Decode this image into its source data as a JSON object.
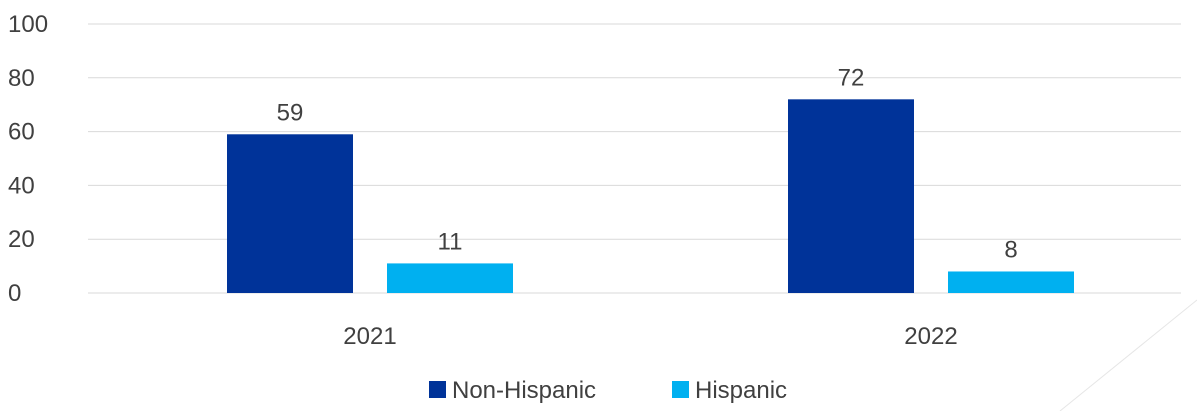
{
  "chart_data": {
    "type": "bar",
    "categories": [
      "2021",
      "2022"
    ],
    "series": [
      {
        "name": "Non-Hispanic",
        "color": "#003399",
        "values": [
          59,
          72
        ]
      },
      {
        "name": "Hispanic",
        "color": "#00b0f0",
        "values": [
          11,
          8
        ]
      }
    ],
    "ylim": [
      0,
      100
    ],
    "yticks": [
      0,
      20,
      40,
      60,
      80,
      100
    ],
    "grid": true,
    "legend_position": "bottom-center",
    "data_labels": true
  }
}
